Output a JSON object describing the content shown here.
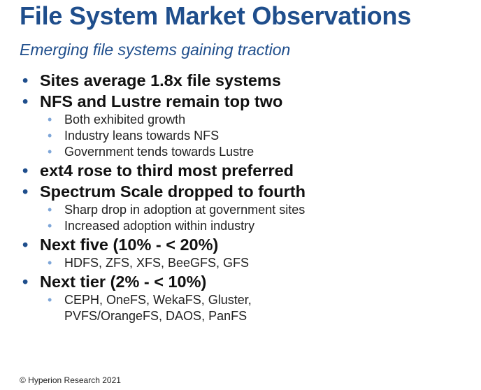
{
  "title": "File System Market Observations",
  "subtitle": "Emerging file systems gaining traction",
  "colors": {
    "title": "#1f4e8c",
    "main_bullet": "#1f4e8c",
    "sub_bullet": "#7ea6d8"
  },
  "bullets": [
    {
      "text": "Sites average 1.8x file systems",
      "subs": []
    },
    {
      "text": "NFS and Lustre remain top two",
      "subs": [
        "Both exhibited growth",
        "Industry leans towards NFS",
        "Government tends towards Lustre"
      ]
    },
    {
      "text": "ext4 rose to third most preferred",
      "subs": []
    },
    {
      "text": "Spectrum Scale dropped to fourth",
      "subs": [
        "Sharp drop in adoption at government sites",
        "Increased adoption within industry"
      ]
    },
    {
      "text": "Next five (10% - < 20%)",
      "subs": [
        "HDFS, ZFS, XFS, BeeGFS, GFS"
      ]
    },
    {
      "text": "Next tier (2% - < 10%)",
      "subs": [
        "CEPH, OneFS, WekaFS, Gluster,",
        "PVFS/OrangeFS, DAOS, PanFS"
      ],
      "continuation_index": 1
    }
  ],
  "footer": "© Hyperion Research 2021"
}
